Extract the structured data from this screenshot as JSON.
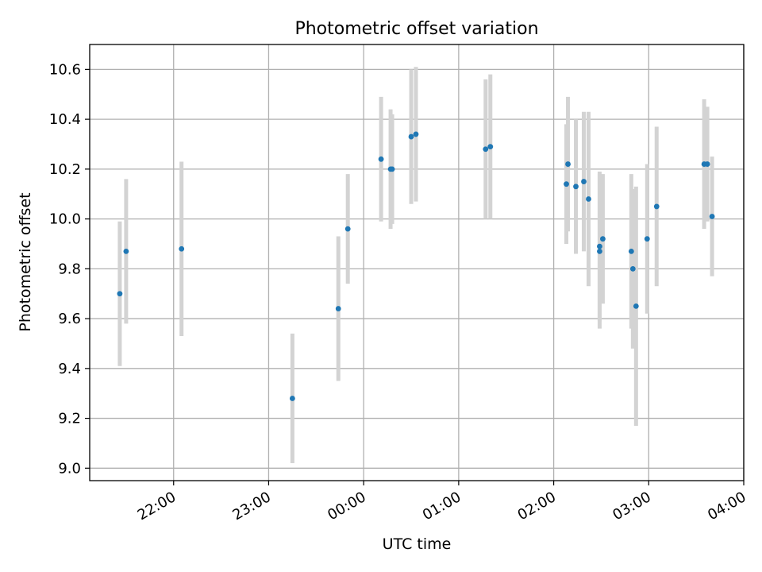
{
  "chart_data": {
    "type": "scatter",
    "title": "Photometric offset variation",
    "xlabel": "UTC time",
    "ylabel": "Photometric offset",
    "x_tick_labels": [
      "22:00",
      "23:00",
      "00:00",
      "01:00",
      "02:00",
      "03:00",
      "04:00"
    ],
    "x_tick_hours": [
      22,
      23,
      24,
      25,
      26,
      27,
      28
    ],
    "xlim": [
      "21:07",
      "04:00"
    ],
    "ylim": [
      8.95,
      10.7
    ],
    "yticks": [
      9.0,
      9.2,
      9.4,
      9.6,
      9.8,
      10.0,
      10.2,
      10.4,
      10.6
    ],
    "grid": true,
    "series": [
      {
        "color": "#1f77b4",
        "errorbar_color": "#d3d3d3",
        "points": [
          {
            "time": "21:26",
            "y": 9.7,
            "err": 0.29
          },
          {
            "time": "21:30",
            "y": 9.87,
            "err": 0.29
          },
          {
            "time": "22:05",
            "y": 9.88,
            "err": 0.35
          },
          {
            "time": "23:15",
            "y": 9.28,
            "err": 0.26
          },
          {
            "time": "23:44",
            "y": 9.64,
            "err": 0.29
          },
          {
            "time": "23:50",
            "y": 9.96,
            "err": 0.22
          },
          {
            "time": "00:11",
            "y": 10.24,
            "err": 0.25
          },
          {
            "time": "00:17",
            "y": 10.2,
            "err": 0.24
          },
          {
            "time": "00:18",
            "y": 10.2,
            "err": 0.22
          },
          {
            "time": "00:30",
            "y": 10.33,
            "err": 0.27
          },
          {
            "time": "00:33",
            "y": 10.34,
            "err": 0.27
          },
          {
            "time": "01:17",
            "y": 10.28,
            "err": 0.28
          },
          {
            "time": "01:20",
            "y": 10.29,
            "err": 0.29
          },
          {
            "time": "02:08",
            "y": 10.14,
            "err": 0.24
          },
          {
            "time": "02:09",
            "y": 10.22,
            "err": 0.27
          },
          {
            "time": "02:14",
            "y": 10.13,
            "err": 0.27
          },
          {
            "time": "02:19",
            "y": 10.15,
            "err": 0.28
          },
          {
            "time": "02:22",
            "y": 10.08,
            "err": 0.35
          },
          {
            "time": "02:29",
            "y": 9.87,
            "err": 0.31
          },
          {
            "time": "02:29",
            "y": 9.89,
            "err": 0.3
          },
          {
            "time": "02:31",
            "y": 9.92,
            "err": 0.26
          },
          {
            "time": "02:49",
            "y": 9.87,
            "err": 0.31
          },
          {
            "time": "02:50",
            "y": 9.8,
            "err": 0.32
          },
          {
            "time": "02:52",
            "y": 9.65,
            "err": 0.48
          },
          {
            "time": "02:59",
            "y": 9.92,
            "err": 0.3
          },
          {
            "time": "03:05",
            "y": 10.05,
            "err": 0.32
          },
          {
            "time": "03:35",
            "y": 10.22,
            "err": 0.26
          },
          {
            "time": "03:37",
            "y": 10.22,
            "err": 0.23
          },
          {
            "time": "03:40",
            "y": 10.01,
            "err": 0.24
          }
        ]
      }
    ]
  }
}
